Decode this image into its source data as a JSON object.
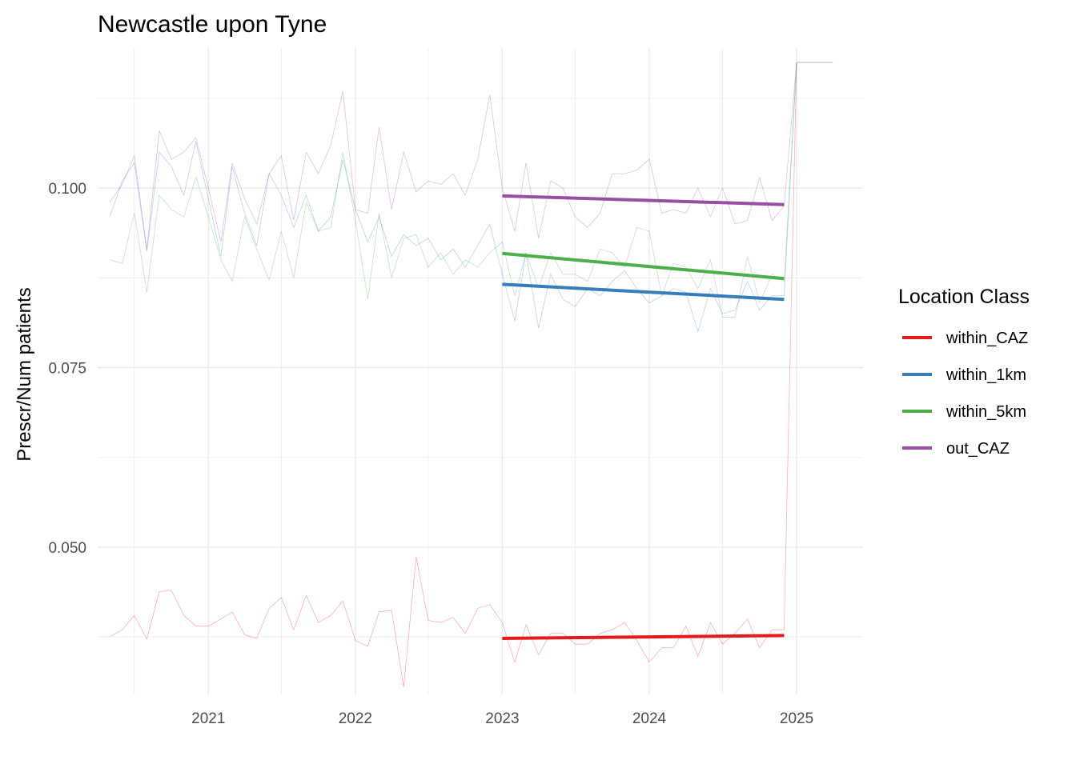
{
  "chart_data": {
    "type": "line",
    "title": "Newcastle upon Tyne",
    "xlabel": "",
    "ylabel": "Prescr/Num patients",
    "xlim": [
      "2020-04-01",
      "2025-06-15"
    ],
    "ylim": [
      0.0295,
      0.1195
    ],
    "x_ticks": [
      "2021",
      "2022",
      "2023",
      "2024",
      "2025"
    ],
    "y_ticks": [
      0.05,
      0.075,
      0.1
    ],
    "y_tick_labels": [
      "0.050",
      "0.075",
      "0.100"
    ],
    "grid": true,
    "legend": {
      "title": "Location Class",
      "position": "right"
    },
    "colors": {
      "within_CAZ": "#e41a1c",
      "within_1km": "#377eb8",
      "within_5km": "#4daf4a",
      "out_CAZ": "#984ea3",
      "raw_gray": "#bdbdbd"
    },
    "series": [
      {
        "name": "within_CAZ",
        "trend": {
          "x": [
            "2023-01-01",
            "2024-12-01"
          ],
          "y": [
            0.0373,
            0.0377
          ]
        },
        "raw": {
          "x": [
            "2020-05-01",
            "2020-06-01",
            "2020-07-01",
            "2020-08-01",
            "2020-09-01",
            "2020-10-01",
            "2020-11-01",
            "2020-12-01",
            "2021-01-01",
            "2021-02-01",
            "2021-03-01",
            "2021-04-01",
            "2021-05-01",
            "2021-06-01",
            "2021-07-01",
            "2021-08-01",
            "2021-09-01",
            "2021-10-01",
            "2021-11-01",
            "2021-12-01",
            "2022-01-01",
            "2022-02-01",
            "2022-03-01",
            "2022-04-01",
            "2022-05-01",
            "2022-06-01",
            "2022-07-01",
            "2022-08-01",
            "2022-09-01",
            "2022-10-01",
            "2022-11-01",
            "2022-12-01",
            "2023-01-01",
            "2023-02-01",
            "2023-03-01",
            "2023-04-01",
            "2023-05-01",
            "2023-06-01",
            "2023-07-01",
            "2023-08-01",
            "2023-09-01",
            "2023-10-01",
            "2023-11-01",
            "2023-12-01",
            "2024-01-01",
            "2024-02-01",
            "2024-03-01",
            "2024-04-01",
            "2024-05-01",
            "2024-06-01",
            "2024-07-01",
            "2024-08-01",
            "2024-09-01",
            "2024-10-01",
            "2024-11-01",
            "2024-12-01",
            "2025-01-01"
          ],
          "y": [
            0.0375,
            0.0385,
            0.0405,
            0.0372,
            0.0438,
            0.044,
            0.0405,
            0.039,
            0.039,
            0.04,
            0.041,
            0.0378,
            0.0373,
            0.0415,
            0.043,
            0.0385,
            0.0433,
            0.0395,
            0.0405,
            0.0425,
            0.037,
            0.0362,
            0.041,
            0.0412,
            0.0305,
            0.0487,
            0.0398,
            0.0395,
            0.0402,
            0.038,
            0.0415,
            0.042,
            0.0395,
            0.034,
            0.0392,
            0.035,
            0.038,
            0.038,
            0.0365,
            0.0365,
            0.038,
            0.0385,
            0.0395,
            0.037,
            0.034,
            0.036,
            0.036,
            0.039,
            0.0348,
            0.0395,
            0.0365,
            0.038,
            0.04,
            0.036,
            0.0385,
            0.0385,
            0.1175
          ]
        }
      },
      {
        "name": "within_1km",
        "trend": {
          "x": [
            "2023-01-01",
            "2024-12-01"
          ],
          "y": [
            0.0866,
            0.0845
          ]
        },
        "raw": {
          "x": [
            "2020-05-01",
            "2020-06-01",
            "2020-07-01",
            "2020-08-01",
            "2020-09-01",
            "2020-10-01",
            "2020-11-01",
            "2020-12-01",
            "2021-01-01",
            "2021-02-01",
            "2021-03-01",
            "2021-04-01",
            "2021-05-01",
            "2021-06-01",
            "2021-07-01",
            "2021-08-01",
            "2021-09-01",
            "2021-10-01",
            "2021-11-01",
            "2021-12-01",
            "2022-01-01",
            "2022-02-01",
            "2022-03-01",
            "2022-04-01",
            "2022-05-01",
            "2022-06-01",
            "2022-07-01",
            "2022-08-01",
            "2022-09-01",
            "2022-10-01",
            "2022-11-01",
            "2022-12-01",
            "2023-01-01",
            "2023-02-01",
            "2023-03-01",
            "2023-04-01",
            "2023-05-01",
            "2023-06-01",
            "2023-07-01",
            "2023-08-01",
            "2023-09-01",
            "2023-10-01",
            "2023-11-01",
            "2023-12-01",
            "2024-01-01",
            "2024-02-01",
            "2024-03-01",
            "2024-04-01",
            "2024-05-01",
            "2024-06-01",
            "2024-07-01",
            "2024-08-01",
            "2024-09-01",
            "2024-10-01",
            "2024-11-01",
            "2024-12-01",
            "2025-01-01"
          ],
          "y": [
            0.096,
            0.101,
            0.1035,
            0.0912,
            0.105,
            0.103,
            0.099,
            0.1065,
            0.0985,
            0.0905,
            0.103,
            0.0965,
            0.092,
            0.102,
            0.099,
            0.0945,
            0.099,
            0.094,
            0.096,
            0.104,
            0.097,
            0.0925,
            0.096,
            0.0905,
            0.0935,
            0.092,
            0.093,
            0.09,
            0.0915,
            0.089,
            0.092,
            0.095,
            0.088,
            0.0815,
            0.091,
            0.0805,
            0.088,
            0.0845,
            0.0835,
            0.086,
            0.085,
            0.087,
            0.0885,
            0.086,
            0.084,
            0.085,
            0.086,
            0.0855,
            0.08,
            0.086,
            0.0825,
            0.083,
            0.087,
            0.083,
            0.085,
            0.085,
            0.1175
          ]
        }
      },
      {
        "name": "within_5km",
        "trend": {
          "x": [
            "2023-01-01",
            "2024-12-01"
          ],
          "y": [
            0.0909,
            0.0874
          ]
        },
        "raw": {
          "x": [
            "2020-05-01",
            "2020-06-01",
            "2020-07-01",
            "2020-08-01",
            "2020-09-01",
            "2020-10-01",
            "2020-11-01",
            "2020-12-01",
            "2021-01-01",
            "2021-02-01",
            "2021-03-01",
            "2021-04-01",
            "2021-05-01",
            "2021-06-01",
            "2021-07-01",
            "2021-08-01",
            "2021-09-01",
            "2021-10-01",
            "2021-11-01",
            "2021-12-01",
            "2022-01-01",
            "2022-02-01",
            "2022-03-01",
            "2022-04-01",
            "2022-05-01",
            "2022-06-01",
            "2022-07-01",
            "2022-08-01",
            "2022-09-01",
            "2022-10-01",
            "2022-11-01",
            "2022-12-01",
            "2023-01-01",
            "2023-02-01",
            "2023-03-01",
            "2023-04-01",
            "2023-05-01",
            "2023-06-01",
            "2023-07-01",
            "2023-08-01",
            "2023-09-01",
            "2023-10-01",
            "2023-11-01",
            "2023-12-01",
            "2024-01-01",
            "2024-02-01",
            "2024-03-01",
            "2024-04-01",
            "2024-05-01",
            "2024-06-01",
            "2024-07-01",
            "2024-08-01",
            "2024-09-01",
            "2024-10-01",
            "2024-11-01",
            "2024-12-01",
            "2025-01-01"
          ],
          "y": [
            0.09,
            0.0895,
            0.0965,
            0.0855,
            0.099,
            0.097,
            0.096,
            0.1015,
            0.096,
            0.09,
            0.087,
            0.096,
            0.0915,
            0.0872,
            0.094,
            0.0875,
            0.098,
            0.094,
            0.0945,
            0.105,
            0.0955,
            0.0845,
            0.0965,
            0.0875,
            0.093,
            0.0935,
            0.089,
            0.091,
            0.088,
            0.09,
            0.089,
            0.091,
            0.0925,
            0.085,
            0.091,
            0.086,
            0.091,
            0.088,
            0.088,
            0.087,
            0.0915,
            0.091,
            0.089,
            0.0945,
            0.094,
            0.085,
            0.0895,
            0.089,
            0.086,
            0.09,
            0.082,
            0.082,
            0.0905,
            0.084,
            0.088,
            0.087,
            0.1175
          ]
        }
      },
      {
        "name": "out_CAZ",
        "trend": {
          "x": [
            "2023-01-01",
            "2024-12-01"
          ],
          "y": [
            0.0989,
            0.0977
          ]
        },
        "raw": {
          "x": [
            "2020-05-01",
            "2020-06-01",
            "2020-07-01",
            "2020-08-01",
            "2020-09-01",
            "2020-10-01",
            "2020-11-01",
            "2020-12-01",
            "2021-01-01",
            "2021-02-01",
            "2021-03-01",
            "2021-04-01",
            "2021-05-01",
            "2021-06-01",
            "2021-07-01",
            "2021-08-01",
            "2021-09-01",
            "2021-10-01",
            "2021-11-01",
            "2021-12-01",
            "2022-01-01",
            "2022-02-01",
            "2022-03-01",
            "2022-04-01",
            "2022-05-01",
            "2022-06-01",
            "2022-07-01",
            "2022-08-01",
            "2022-09-01",
            "2022-10-01",
            "2022-11-01",
            "2022-12-01",
            "2023-01-01",
            "2023-02-01",
            "2023-03-01",
            "2023-04-01",
            "2023-05-01",
            "2023-06-01",
            "2023-07-01",
            "2023-08-01",
            "2023-09-01",
            "2023-10-01",
            "2023-11-01",
            "2023-12-01",
            "2024-01-01",
            "2024-02-01",
            "2024-03-01",
            "2024-04-01",
            "2024-05-01",
            "2024-06-01",
            "2024-07-01",
            "2024-08-01",
            "2024-09-01",
            "2024-10-01",
            "2024-11-01",
            "2024-12-01",
            "2025-01-01"
          ],
          "y": [
            0.098,
            0.1005,
            0.1045,
            0.0915,
            0.108,
            0.104,
            0.105,
            0.107,
            0.1,
            0.0925,
            0.1035,
            0.0985,
            0.095,
            0.102,
            0.1045,
            0.0955,
            0.105,
            0.102,
            0.106,
            0.1135,
            0.097,
            0.0965,
            0.1085,
            0.097,
            0.105,
            0.0995,
            0.101,
            0.1005,
            0.102,
            0.099,
            0.104,
            0.113,
            0.1,
            0.094,
            0.1035,
            0.093,
            0.101,
            0.1,
            0.096,
            0.0945,
            0.0965,
            0.102,
            0.102,
            0.1025,
            0.104,
            0.0965,
            0.097,
            0.0965,
            0.1,
            0.096,
            0.1,
            0.095,
            0.0955,
            0.1015,
            0.0955,
            0.0975,
            0.1175
          ]
        }
      },
      {
        "name": "",
        "raw": {
          "x": [
            "2025-01-01",
            "2025-04-01"
          ],
          "y": [
            0.1175,
            0.1175
          ]
        }
      }
    ]
  }
}
